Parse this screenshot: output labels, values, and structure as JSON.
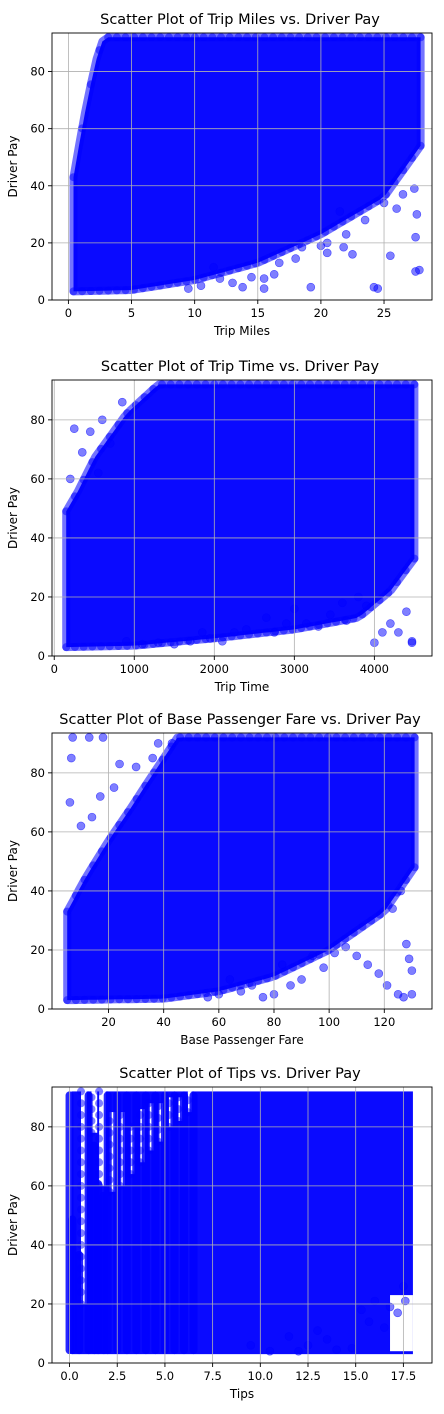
{
  "chart_data": [
    {
      "type": "scatter",
      "title": "Scatter Plot of Trip Miles vs. Driver Pay",
      "xlabel": "Trip Miles",
      "ylabel": "Driver Pay",
      "xlim": [
        -1.3,
        28.8
      ],
      "ylim": [
        0,
        93.5
      ],
      "xticks": [
        0,
        5,
        10,
        15,
        20,
        25
      ],
      "xtick_labels": [
        "0",
        "5",
        "10",
        "15",
        "20",
        "25"
      ],
      "yticks": [
        0,
        20,
        40,
        60,
        80
      ],
      "ytick_labels": [
        "0",
        "20",
        "40",
        "60",
        "80"
      ],
      "grid": true,
      "marker_color": "#0000ff",
      "marker_alpha": 0.5,
      "x_data_range": [
        0.4,
        27.9
      ],
      "y_data_range": [
        3,
        92
      ],
      "lower_frontier": [
        [
          0.4,
          3
        ],
        [
          5,
          3.5
        ],
        [
          10,
          7
        ],
        [
          15,
          13
        ],
        [
          20,
          23
        ],
        [
          25,
          36
        ],
        [
          27.9,
          54
        ]
      ],
      "upper_frontier": [
        [
          0.4,
          43
        ],
        [
          1,
          58
        ],
        [
          1.5,
          70
        ],
        [
          2.2,
          84
        ],
        [
          2.8,
          92
        ],
        [
          27.9,
          92
        ]
      ],
      "outliers": [
        [
          27.5,
          10
        ],
        [
          27.8,
          10.5
        ],
        [
          25.5,
          15.5
        ],
        [
          24.5,
          4
        ],
        [
          24.2,
          4.5
        ],
        [
          22.5,
          16
        ],
        [
          22,
          23
        ],
        [
          21.8,
          18.5
        ],
        [
          20.5,
          20
        ],
        [
          20,
          19
        ],
        [
          20.5,
          16.5
        ],
        [
          19.2,
          4.5
        ],
        [
          18.5,
          18.5
        ],
        [
          18,
          14.5
        ],
        [
          16.7,
          13
        ],
        [
          16.3,
          9
        ],
        [
          15.5,
          4
        ],
        [
          15.5,
          7.5
        ],
        [
          14.5,
          8
        ],
        [
          13.8,
          4.5
        ],
        [
          13,
          6
        ],
        [
          12,
          7.5
        ],
        [
          11.5,
          11.5
        ],
        [
          10.5,
          5
        ],
        [
          9.5,
          4
        ],
        [
          26.5,
          37
        ],
        [
          26,
          32
        ],
        [
          25,
          34
        ],
        [
          23.5,
          28
        ],
        [
          21.5,
          31
        ],
        [
          27.5,
          22
        ],
        [
          27.6,
          30
        ],
        [
          27.4,
          39
        ]
      ]
    },
    {
      "type": "scatter",
      "title": "Scatter Plot of Trip Time vs. Driver Pay",
      "xlabel": "Trip Time",
      "ylabel": "Driver Pay",
      "xlim": [
        -28,
        4720
      ],
      "ylim": [
        0,
        93.5
      ],
      "xticks": [
        0,
        1000,
        2000,
        3000,
        4000
      ],
      "xtick_labels": [
        "0",
        "1000",
        "2000",
        "3000",
        "4000"
      ],
      "yticks": [
        0,
        20,
        40,
        60,
        80
      ],
      "ytick_labels": [
        "0",
        "20",
        "40",
        "60",
        "80"
      ],
      "grid": true,
      "marker_color": "#0000ff",
      "marker_alpha": 0.5,
      "x_data_range": [
        150,
        4500
      ],
      "y_data_range": [
        3,
        92
      ],
      "lower_frontier": [
        [
          150,
          3
        ],
        [
          1000,
          3.5
        ],
        [
          2000,
          6
        ],
        [
          3000,
          9
        ],
        [
          3800,
          13
        ],
        [
          4200,
          22
        ],
        [
          4500,
          33
        ]
      ],
      "upper_frontier": [
        [
          150,
          49
        ],
        [
          300,
          56
        ],
        [
          500,
          67
        ],
        [
          900,
          82
        ],
        [
          1300,
          92
        ],
        [
          4500,
          92
        ]
      ],
      "outliers": [
        [
          4470,
          4.5
        ],
        [
          4470,
          5
        ],
        [
          4400,
          15
        ],
        [
          4300,
          8
        ],
        [
          4200,
          11
        ],
        [
          4100,
          8
        ],
        [
          4000,
          4.5
        ],
        [
          3900,
          17
        ],
        [
          3800,
          20
        ],
        [
          3650,
          12
        ],
        [
          3600,
          18
        ],
        [
          3450,
          14
        ],
        [
          3300,
          10
        ],
        [
          3150,
          11
        ],
        [
          3000,
          16
        ],
        [
          2900,
          11
        ],
        [
          2750,
          8
        ],
        [
          2650,
          13
        ],
        [
          2400,
          9
        ],
        [
          2250,
          8
        ],
        [
          2100,
          5
        ],
        [
          1950,
          6
        ],
        [
          1850,
          8
        ],
        [
          1700,
          5
        ],
        [
          1500,
          4
        ],
        [
          1300,
          4.5
        ],
        [
          1100,
          4
        ],
        [
          900,
          5
        ],
        [
          250,
          77
        ],
        [
          350,
          69
        ],
        [
          550,
          62
        ],
        [
          700,
          72
        ],
        [
          200,
          60
        ],
        [
          450,
          76
        ],
        [
          850,
          86
        ],
        [
          600,
          80
        ]
      ]
    },
    {
      "type": "scatter",
      "title": "Scatter Plot of Base Passenger Fare vs. Driver Pay",
      "xlabel": "Base Passenger Fare",
      "ylabel": "Driver Pay",
      "xlim": [
        -0.5,
        137.3
      ],
      "ylim": [
        0,
        93.5
      ],
      "xticks": [
        20,
        40,
        60,
        80,
        100,
        120
      ],
      "xtick_labels": [
        "20",
        "40",
        "60",
        "80",
        "100",
        "120"
      ],
      "yticks": [
        0,
        20,
        40,
        60,
        80
      ],
      "ytick_labels": [
        "0",
        "20",
        "40",
        "60",
        "80"
      ],
      "grid": true,
      "marker_color": "#0000ff",
      "marker_alpha": 0.5,
      "x_data_range": [
        5,
        131
      ],
      "y_data_range": [
        3,
        92
      ],
      "lower_frontier": [
        [
          5,
          3
        ],
        [
          40,
          3.5
        ],
        [
          60,
          6
        ],
        [
          80,
          11
        ],
        [
          100,
          20
        ],
        [
          120,
          33
        ],
        [
          131,
          48
        ]
      ],
      "upper_frontier": [
        [
          5,
          33
        ],
        [
          12,
          45
        ],
        [
          20,
          57
        ],
        [
          28,
          68
        ],
        [
          35,
          78
        ],
        [
          45,
          92
        ],
        [
          131,
          92
        ]
      ],
      "outliers": [
        [
          6,
          70
        ],
        [
          6.5,
          85
        ],
        [
          7,
          92
        ],
        [
          13,
          92
        ],
        [
          18,
          92
        ],
        [
          10,
          62
        ],
        [
          14,
          65
        ],
        [
          17,
          72
        ],
        [
          22,
          75
        ],
        [
          24,
          83
        ],
        [
          30,
          82
        ],
        [
          36,
          85
        ],
        [
          38,
          90
        ],
        [
          43,
          90
        ],
        [
          127,
          4
        ],
        [
          125,
          5
        ],
        [
          121,
          8
        ],
        [
          118,
          12
        ],
        [
          114,
          15
        ],
        [
          110,
          18
        ],
        [
          106,
          21
        ],
        [
          102,
          19
        ],
        [
          98,
          14
        ],
        [
          94,
          18
        ],
        [
          90,
          10
        ],
        [
          86,
          8
        ],
        [
          83,
          15
        ],
        [
          80,
          5
        ],
        [
          76,
          4
        ],
        [
          72,
          8
        ],
        [
          68,
          6
        ],
        [
          64,
          10
        ],
        [
          60,
          5
        ],
        [
          56,
          4
        ],
        [
          130,
          13
        ],
        [
          129,
          17
        ],
        [
          128,
          22
        ],
        [
          130,
          5
        ],
        [
          126,
          40
        ],
        [
          123,
          34
        ]
      ]
    },
    {
      "type": "scatter",
      "title": "Scatter Plot of Tips vs. Driver Pay",
      "xlabel": "Tips",
      "ylabel": "Driver Pay",
      "xlim": [
        -0.92,
        19.0
      ],
      "ylim": [
        0,
        93.5
      ],
      "xticks": [
        0,
        2.5,
        5,
        7.5,
        10,
        12.5,
        15,
        17.5
      ],
      "xtick_labels": [
        "0.0",
        "2.5",
        "5.0",
        "7.5",
        "10.0",
        "12.5",
        "15.0",
        "17.5"
      ],
      "yticks": [
        0,
        20,
        40,
        60,
        80
      ],
      "ytick_labels": [
        "0",
        "20",
        "40",
        "60",
        "80"
      ],
      "grid": true,
      "marker_color": "#0000ff",
      "marker_alpha": 0.5,
      "x_data_range": [
        0,
        18
      ],
      "y_data_range": [
        3,
        92
      ],
      "columns": [
        [
          0,
          3,
          92
        ],
        [
          0.15,
          3,
          50
        ],
        [
          0.5,
          3,
          38
        ],
        [
          1,
          3,
          92
        ],
        [
          1.3,
          3,
          75
        ],
        [
          1.5,
          3,
          62
        ],
        [
          1.8,
          3,
          58
        ],
        [
          2,
          3,
          92
        ],
        [
          2.5,
          3,
          92
        ],
        [
          3,
          3,
          92
        ],
        [
          3.5,
          3,
          92
        ],
        [
          4,
          3,
          92
        ],
        [
          4.5,
          3,
          92
        ],
        [
          5,
          3,
          92
        ],
        [
          5.5,
          3,
          92
        ],
        [
          6,
          3,
          92
        ],
        [
          6.5,
          3,
          92
        ]
      ],
      "gaps": [
        [
          0.6,
          0.9,
          20,
          92
        ],
        [
          1.15,
          1.45,
          78,
          92
        ],
        [
          1.55,
          1.9,
          60,
          92
        ],
        [
          2.1,
          2.4,
          58,
          85
        ],
        [
          2.65,
          2.9,
          60,
          85
        ],
        [
          3.2,
          3.4,
          64,
          80
        ],
        [
          3.7,
          3.95,
          68,
          86
        ],
        [
          4.15,
          4.4,
          72,
          88
        ],
        [
          4.65,
          4.9,
          75,
          88
        ],
        [
          5.2,
          5.4,
          80,
          90
        ],
        [
          5.7,
          5.9,
          82,
          90
        ],
        [
          6.2,
          6.4,
          85,
          92
        ]
      ],
      "lower_right_notch": [
        [
          16.8,
          18,
          4,
          23
        ]
      ],
      "outliers": [
        [
          17.2,
          17
        ],
        [
          16.8,
          19
        ],
        [
          16.5,
          12
        ],
        [
          16,
          21
        ],
        [
          15.7,
          14
        ],
        [
          15.3,
          18
        ],
        [
          14.8,
          5
        ],
        [
          13.5,
          8
        ],
        [
          13,
          11
        ],
        [
          12.5,
          6
        ],
        [
          11.5,
          9
        ],
        [
          10.5,
          4
        ],
        [
          9.5,
          6
        ],
        [
          17.5,
          26
        ],
        [
          17.6,
          21
        ],
        [
          14,
          4.5
        ],
        [
          12,
          4
        ]
      ]
    }
  ]
}
